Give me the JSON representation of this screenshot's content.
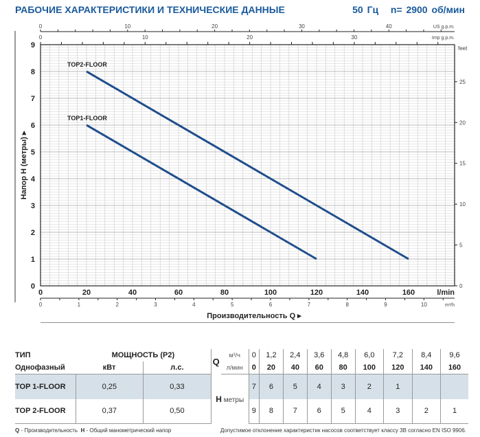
{
  "header": {
    "title": "РАБОЧИЕ ХАРАКТЕРИСТИКИ И ТЕХНИЧЕСКИЕ ДАННЫЕ",
    "frequency": "50 Гц",
    "speed": "n= 2900 об/мин"
  },
  "chart_data": {
    "type": "line",
    "xlabel": "Производительность Q",
    "ylabel": "Напор H (метры)",
    "x_unit": "l/min",
    "y_right_unit": "feet",
    "xlim": [
      0,
      180
    ],
    "ylim": [
      0,
      9
    ],
    "grid": true,
    "x_ticks": [
      0,
      20,
      40,
      60,
      80,
      100,
      120,
      140,
      160
    ],
    "y_ticks": [
      0,
      1,
      2,
      3,
      4,
      5,
      6,
      7,
      8,
      9
    ],
    "feet_ticks": [
      0,
      5,
      10,
      15,
      20,
      25
    ],
    "us_gpm_ticks": [
      0,
      10,
      20,
      30,
      40
    ],
    "us_gpm_label": "US g.p.m.",
    "imp_gpm_ticks": [
      0,
      10,
      20,
      30
    ],
    "imp_gpm_label": "Imp g.p.m.",
    "m3h_ticks": [
      0,
      1,
      2,
      3,
      4,
      5,
      6,
      7,
      8,
      9,
      10
    ],
    "m3h_label": "m³/h",
    "series": [
      {
        "name": "TOP2-FLOOR",
        "x": [
          20,
          160
        ],
        "y": [
          8,
          1
        ],
        "color": "#1f4e8c"
      },
      {
        "name": "TOP1-FLOOR",
        "x": [
          20,
          120
        ],
        "y": [
          6,
          1
        ],
        "color": "#1f4e8c"
      }
    ]
  },
  "table": {
    "type_label": "ТИП",
    "phase_label": "Однофазный",
    "power_label": "МОЩНОСТЬ (P2)",
    "kw_label": "кВт",
    "hp_label": "л.с.",
    "q_label": "Q",
    "m3h_unit": "м³/ч",
    "lmin_unit": "л/мин",
    "h_label": "H",
    "h_unit": "метры",
    "m3h": [
      "0",
      "1,2",
      "2,4",
      "3,6",
      "4,8",
      "6,0",
      "7,2",
      "8,4",
      "9,6"
    ],
    "lmin": [
      "0",
      "20",
      "40",
      "60",
      "80",
      "100",
      "120",
      "140",
      "160"
    ],
    "rows": [
      {
        "model": "TOP 1-FLOOR",
        "kw": "0,25",
        "hp": "0,33",
        "h": [
          "7",
          "6",
          "5",
          "4",
          "3",
          "2",
          "1",
          "",
          ""
        ]
      },
      {
        "model": "TOP 2-FLOOR",
        "kw": "0,37",
        "hp": "0,50",
        "h": [
          "9",
          "8",
          "7",
          "6",
          "5",
          "4",
          "3",
          "2",
          "1"
        ]
      }
    ]
  },
  "footer": {
    "q_key": "Q",
    "q_desc": " - Производительность",
    "h_key": "H",
    "h_desc": " - Общий манометрический напор",
    "note": "Допустимое отклонение характеристик насосов соответствует классу 3В согласно EN ISO 9906."
  }
}
